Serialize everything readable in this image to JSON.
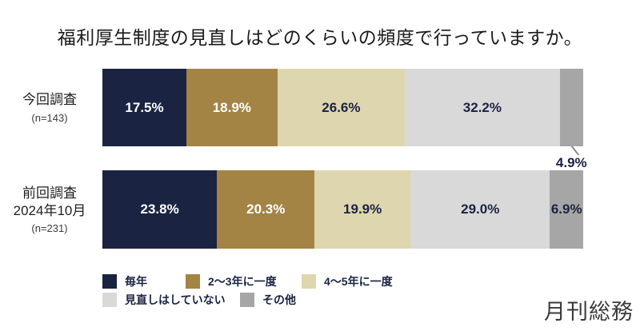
{
  "title": "福利厚生制度の見直しはどのくらいの頻度で行っていますか。",
  "logo": "月刊総務",
  "value_label_colors": {
    "on_dark": "#ffffff",
    "on_light": "#1b2343"
  },
  "chart_data": {
    "type": "bar",
    "orientation": "horizontal",
    "stacked": true,
    "unit": "%",
    "legend_position": "bottom",
    "categories": [
      "毎年",
      "2〜3年に一度",
      "4〜5年に一度",
      "見直しはしていない",
      "その他"
    ],
    "legend": [
      {
        "label": "毎年",
        "color": "#1b2343",
        "value_text": "light"
      },
      {
        "label": "2〜3年に一度",
        "color": "#a38445",
        "value_text": "light"
      },
      {
        "label": "4〜5年に一度",
        "color": "#ded6ae",
        "value_text": "dark"
      },
      {
        "label": "見直しはしていない",
        "color": "#d9d9d9",
        "value_text": "dark"
      },
      {
        "label": "その他",
        "color": "#a6a6a6",
        "value_text": "dark"
      }
    ],
    "series": [
      {
        "name": "今回調査",
        "name_lines": [
          "今回調査"
        ],
        "n_label": "(n=143)",
        "values": [
          17.5,
          18.9,
          26.6,
          32.2,
          4.9
        ],
        "labels": [
          "17.5%",
          "18.9%",
          "26.6%",
          "32.2%",
          "4.9%"
        ]
      },
      {
        "name": "前回調査 2024年10月",
        "name_lines": [
          "前回調査",
          "2024年10月"
        ],
        "n_label": "(n=231)",
        "values": [
          23.8,
          20.3,
          19.9,
          29.0,
          6.9
        ],
        "labels": [
          "23.8%",
          "20.3%",
          "19.9%",
          "29.0%",
          "6.9%"
        ]
      }
    ],
    "callout": {
      "series": 0,
      "segment": 4
    }
  }
}
